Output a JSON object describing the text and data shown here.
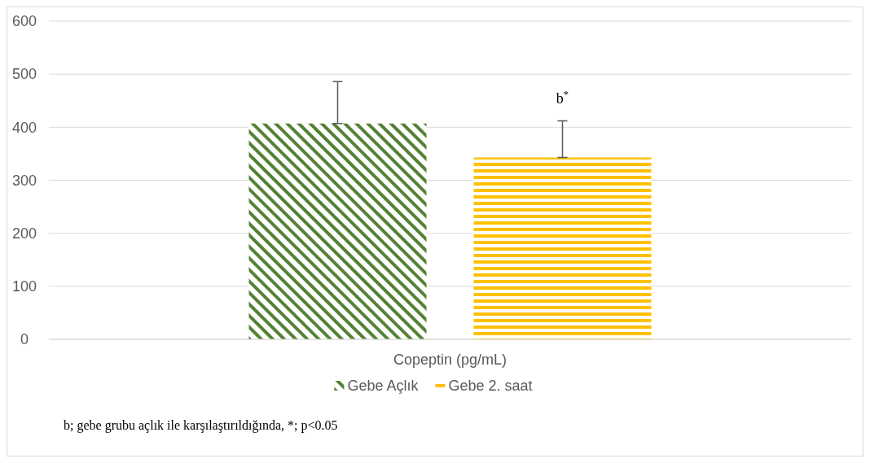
{
  "chart_data": {
    "type": "bar",
    "categories": [
      "Copeptin (pg/mL)"
    ],
    "series": [
      {
        "name": "Gebe Açlık",
        "color": "#548235",
        "values": [
          407
        ],
        "errors": [
          [
            407,
            486
          ]
        ]
      },
      {
        "name": "Gebe 2. saat",
        "color": "#ffc000",
        "values": [
          343
        ],
        "errors": [
          [
            343,
            412
          ]
        ]
      }
    ],
    "ylim": [
      0,
      600
    ],
    "yticks": [
      0,
      100,
      200,
      300,
      400,
      500,
      600
    ],
    "grid": "y",
    "legend": "bottom",
    "annotations": [
      "b$^{*}$",
      "b; gebe grubu açlık ile karşılaştırıldığında, *; p<0.05"
    ]
  }
}
